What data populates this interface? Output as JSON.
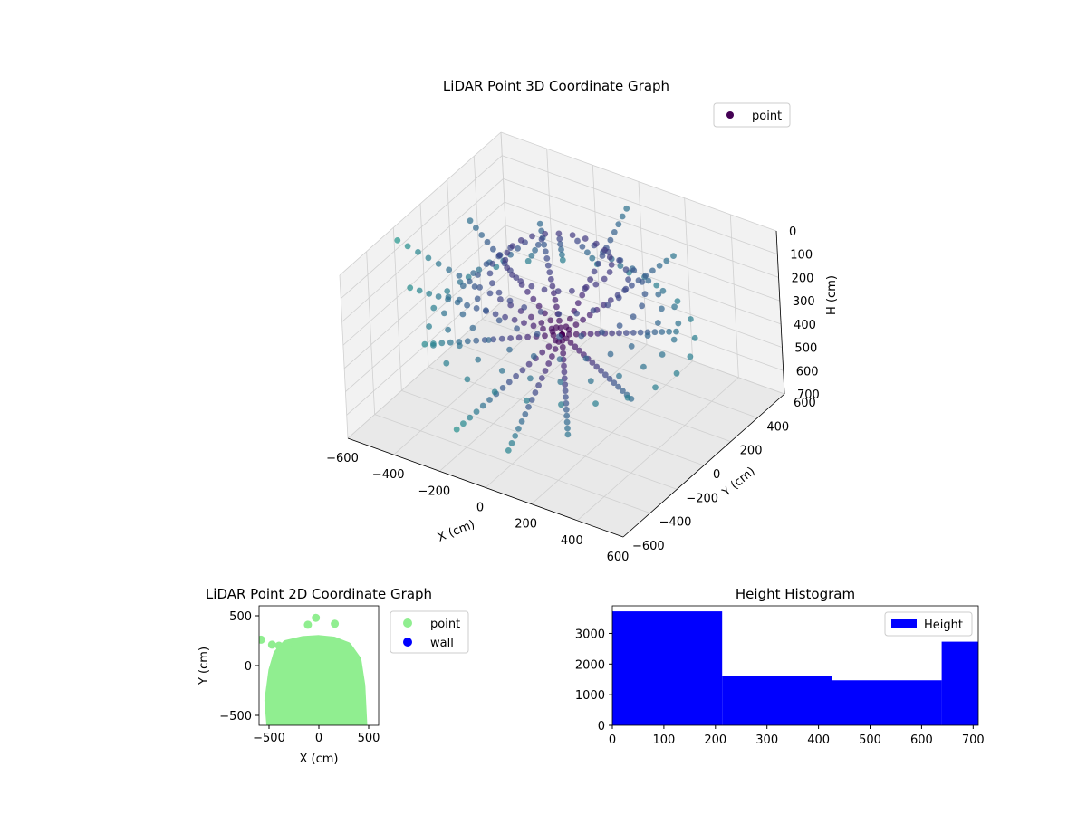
{
  "chart_data": [
    {
      "type": "scatter3d",
      "title": "LiDAR Point 3D Coordinate Graph",
      "xlabel": "X (cm)",
      "ylabel": "Y (cm)",
      "zlabel": "H (cm)",
      "xlim": [
        -600,
        600
      ],
      "ylim": [
        -600,
        600
      ],
      "zlim": [
        0,
        700
      ],
      "z_axis_inverted": true,
      "x_ticks": [
        -600,
        -400,
        -200,
        0,
        200,
        400,
        600
      ],
      "y_ticks": [
        -600,
        -400,
        -200,
        0,
        200,
        400,
        600
      ],
      "z_ticks": [
        0,
        100,
        200,
        300,
        400,
        500,
        600,
        700
      ],
      "legend": {
        "position": "top-right",
        "entries": [
          "point"
        ]
      },
      "colormap": "viridis",
      "grid": true,
      "colors": {
        "point_legend": "#440154",
        "pane": "#f2f2f2",
        "pane_side": "#e9e9e9",
        "grid": "#d0d0d0"
      },
      "series": [
        {
          "name": "point",
          "description_of_shape": "radial lines of points fanning from a centre at about (0,0,350) outwards and upwards to a dome-shaped shell",
          "sample_points": [
            {
              "x": -440,
              "y": -360,
              "z": 120
            },
            {
              "x": -350,
              "y": -420,
              "z": 300
            },
            {
              "x": -140,
              "y": -560,
              "z": 520
            },
            {
              "x": 60,
              "y": -520,
              "z": 560
            },
            {
              "x": 240,
              "y": -380,
              "z": 500
            },
            {
              "x": 380,
              "y": -140,
              "z": 420
            },
            {
              "x": 420,
              "y": 140,
              "z": 260
            },
            {
              "x": 300,
              "y": 340,
              "z": 80
            },
            {
              "x": 40,
              "y": 440,
              "z": 20
            },
            {
              "x": -260,
              "y": 300,
              "z": 120
            },
            {
              "x": -420,
              "y": 60,
              "z": 40
            },
            {
              "x": -560,
              "y": -240,
              "z": 20
            }
          ]
        }
      ]
    },
    {
      "type": "scatter",
      "title": "LiDAR Point 2D Coordinate Graph",
      "xlabel": "X (cm)",
      "ylabel": "Y (cm)",
      "xlim": [
        -600,
        600
      ],
      "ylim": [
        -600,
        600
      ],
      "x_ticks": [
        -500,
        0,
        500
      ],
      "y_ticks": [
        -500,
        0,
        500
      ],
      "legend": {
        "position": "outside-right",
        "entries": [
          "point",
          "wall"
        ]
      },
      "series": [
        {
          "name": "point",
          "color": "#90ee90",
          "description_of_shape": "filled rounded blob: flat bottom at y=-600, sides at x about -490 and 450, dome top near y=250",
          "outline": [
            {
              "x": -490,
              "y": -600
            },
            {
              "x": -510,
              "y": -350
            },
            {
              "x": -470,
              "y": -50
            },
            {
              "x": -420,
              "y": 120
            },
            {
              "x": -330,
              "y": 220
            },
            {
              "x": -160,
              "y": 260
            },
            {
              "x": 0,
              "y": 270
            },
            {
              "x": 150,
              "y": 255
            },
            {
              "x": 290,
              "y": 200
            },
            {
              "x": 390,
              "y": 60
            },
            {
              "x": 430,
              "y": -200
            },
            {
              "x": 450,
              "y": -600
            }
          ],
          "outliers": [
            {
              "x": -580,
              "y": 260
            },
            {
              "x": -470,
              "y": 210
            },
            {
              "x": -400,
              "y": 200
            },
            {
              "x": -110,
              "y": 410
            },
            {
              "x": -30,
              "y": 480
            },
            {
              "x": 160,
              "y": 420
            }
          ]
        },
        {
          "name": "wall",
          "color": "#0000ff",
          "points": []
        }
      ]
    },
    {
      "type": "histogram",
      "title": "Height Histogram",
      "xlim": [
        0,
        710
      ],
      "ylim": [
        0,
        3900
      ],
      "x_ticks": [
        0,
        100,
        200,
        300,
        400,
        500,
        600,
        700
      ],
      "y_ticks": [
        0,
        1000,
        2000,
        3000
      ],
      "legend": {
        "position": "top-right",
        "entries": [
          "Height"
        ]
      },
      "series": [
        {
          "name": "Height",
          "color": "#0000ff",
          "bins": [
            {
              "x0": 0,
              "x1": 213,
              "count": 3720
            },
            {
              "x0": 213,
              "x1": 426,
              "count": 1620
            },
            {
              "x0": 426,
              "x1": 639,
              "count": 1470
            },
            {
              "x0": 639,
              "x1": 710,
              "count": 2730
            }
          ]
        }
      ]
    }
  ]
}
